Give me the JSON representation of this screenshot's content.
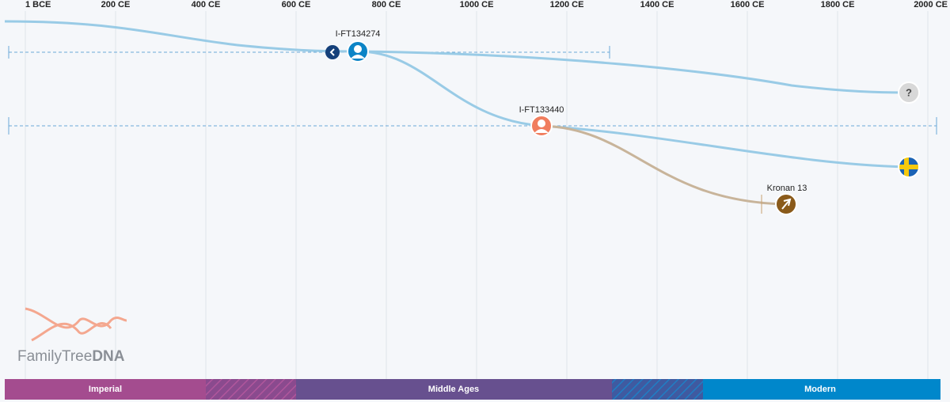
{
  "axis": {
    "ticks": [
      "1 BCE",
      "200 CE",
      "400 CE",
      "600 CE",
      "800 CE",
      "1000 CE",
      "1200 CE",
      "1400 CE",
      "1600 CE",
      "1800 CE",
      "2000 CE"
    ]
  },
  "nodes": [
    {
      "label": "I-FT134274"
    },
    {
      "label": "I-FT133440"
    },
    {
      "label": "Kronan 13"
    }
  ],
  "unknown_marker": "?",
  "logo": {
    "text": "FamilyTree",
    "bold": "DNA"
  },
  "eras": [
    "Imperial",
    "Middle Ages",
    "Modern"
  ]
}
